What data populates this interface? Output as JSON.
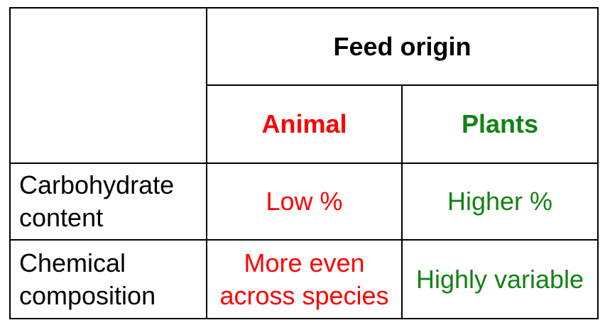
{
  "table": {
    "header": {
      "group_label": "Feed origin",
      "col_animal": "Animal",
      "col_plants": "Plants"
    },
    "rows": [
      {
        "label_line1": "Carbohydrate",
        "label_line2": "content",
        "animal_line1": "Low %",
        "plants_line1": "Higher %"
      },
      {
        "label_line1": "Chemical",
        "label_line2": "composition",
        "animal_line1": "More even",
        "animal_line2": "across species",
        "plants_line1": "Highly variable"
      }
    ],
    "colors": {
      "animal": "#ff0000",
      "plants": "#128212",
      "border": "#000000"
    }
  }
}
